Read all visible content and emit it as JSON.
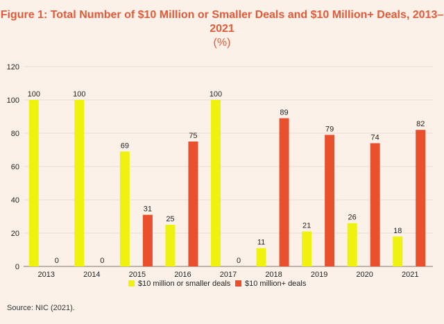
{
  "chart_data": {
    "type": "bar",
    "title": "Figure 1: Total Number of $10 Million or Smaller Deals and $10 Million+ Deals, 2013–2021",
    "unit_label": "(%)",
    "categories": [
      "2013",
      "2014",
      "2015",
      "2016",
      "2017",
      "2018",
      "2019",
      "2020",
      "2021"
    ],
    "series": [
      {
        "name": "$10 million or smaller deals",
        "color": "#eef20e",
        "values": [
          100,
          100,
          69,
          25,
          100,
          11,
          21,
          26,
          18
        ]
      },
      {
        "name": "$10 million+ deals",
        "color": "#e9502d",
        "values": [
          0,
          0,
          31,
          75,
          0,
          89,
          79,
          74,
          82
        ]
      }
    ],
    "ylim": [
      0,
      120
    ],
    "yticks": [
      0,
      20,
      40,
      60,
      80,
      100,
      120
    ],
    "grid": true,
    "legend": "bottom-center"
  },
  "source": "Source: NIC (2021)."
}
